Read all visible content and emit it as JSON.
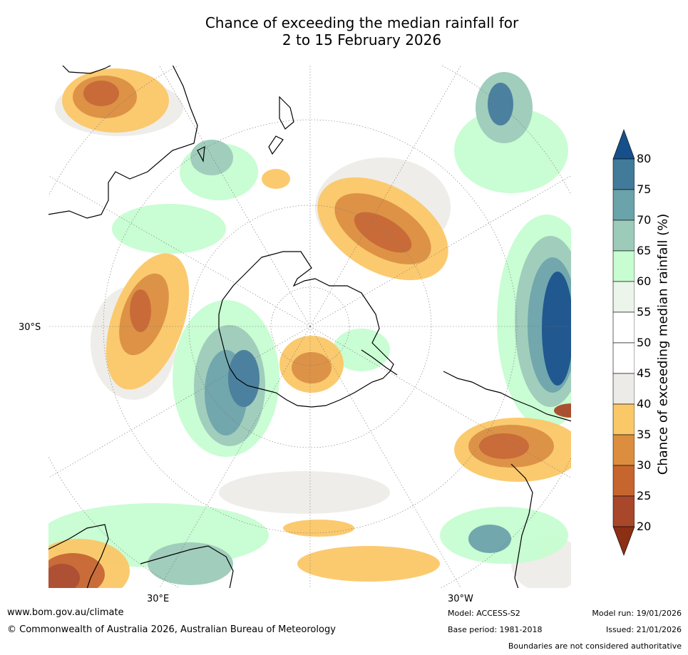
{
  "title": {
    "line1": "Chance of exceeding the median rainfall for",
    "line2": "2 to 15 February 2026"
  },
  "map": {
    "labels": {
      "lat": "30°S",
      "lon_east": "30°E",
      "lon_west": "30°W"
    },
    "colors": {
      "p20": "#8b2f15",
      "p25": "#a9472a",
      "p30": "#c7652f",
      "p35": "#dc8e3e",
      "p40": "#fbc868",
      "p45": "#ecebe7",
      "p50": "#ffffff",
      "p55": "#ffffff",
      "p60": "#ebf5e9",
      "p65": "#c7fdd1",
      "p70": "#9ccbb9",
      "p75": "#6aa3a9",
      "p80": "#427a9a",
      "p85": "#16508a"
    }
  },
  "colorbar": {
    "title": "Chance of exceeding median rainfall (%)",
    "ticks": [
      "80",
      "75",
      "70",
      "65",
      "60",
      "55",
      "50",
      "45",
      "40",
      "35",
      "30",
      "25",
      "20"
    ],
    "band_colors": [
      "#16508a",
      "#427a9a",
      "#6aa3a9",
      "#9ccbb9",
      "#c7fdd1",
      "#ebf5e9",
      "#ffffff",
      "#ffffff",
      "#ecebe7",
      "#fbc868",
      "#dc8e3e",
      "#c7652f",
      "#a9472a",
      "#8b2f15"
    ]
  },
  "footer": {
    "website": "www.bom.gov.au/climate",
    "copyright": "© Commonwealth of Australia 2026, Australian Bureau of Meteorology",
    "model": "Model: ACCESS-S2",
    "base_period": "Base period: 1981-2018",
    "model_run": "Model run: 19/01/2026",
    "issued": "Issued: 21/01/2026",
    "boundaries_note": "Boundaries are not considered authoritative"
  }
}
